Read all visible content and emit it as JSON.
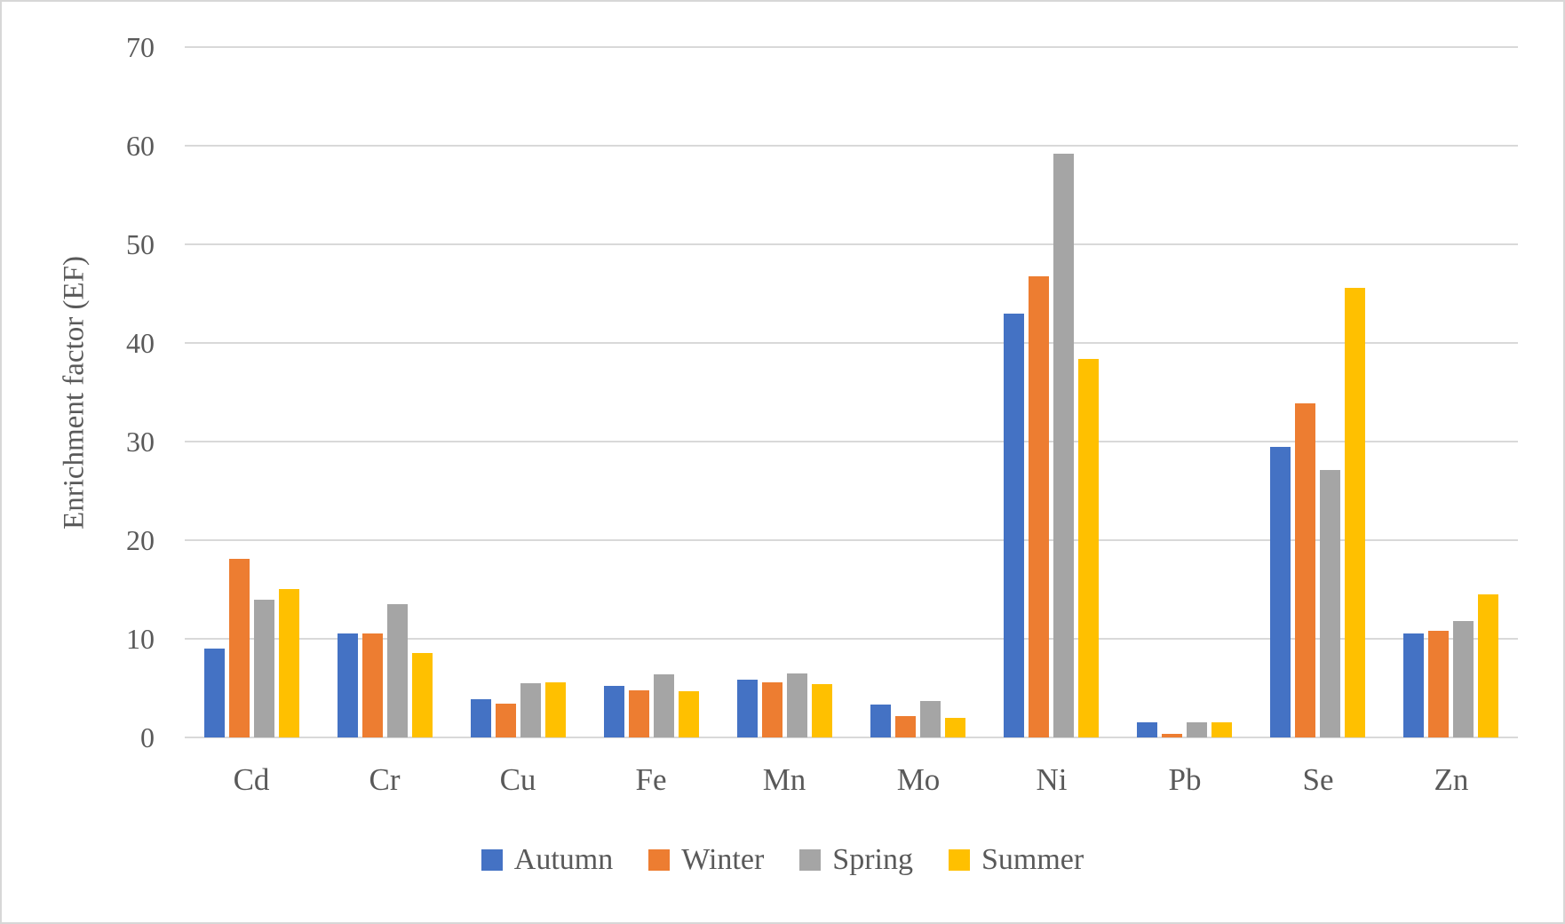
{
  "chart_data": {
    "type": "bar",
    "title": "",
    "xlabel": "",
    "ylabel": "Enrichment factor (EF)",
    "ylim": [
      0,
      70
    ],
    "yticks": [
      0,
      10,
      20,
      30,
      40,
      50,
      60,
      70
    ],
    "grid": true,
    "legend_position": "bottom",
    "categories": [
      "Cd",
      "Cr",
      "Cu",
      "Fe",
      "Mn",
      "Mo",
      "Ni",
      "Pb",
      "Se",
      "Zn"
    ],
    "series": [
      {
        "name": "Autumn",
        "color": "#4472C4",
        "values": [
          9.0,
          10.5,
          3.9,
          5.2,
          5.9,
          3.3,
          43.0,
          1.5,
          29.5,
          10.5
        ]
      },
      {
        "name": "Winter",
        "color": "#ED7D31",
        "values": [
          18.1,
          10.5,
          3.4,
          4.8,
          5.6,
          2.2,
          46.8,
          0.4,
          33.9,
          10.8
        ]
      },
      {
        "name": "Spring",
        "color": "#A5A5A5",
        "values": [
          14.0,
          13.5,
          5.5,
          6.4,
          6.5,
          3.7,
          59.2,
          1.5,
          27.1,
          11.8
        ]
      },
      {
        "name": "Summer",
        "color": "#FFC000",
        "values": [
          15.0,
          8.6,
          5.6,
          4.7,
          5.4,
          2.0,
          38.4,
          1.5,
          45.6,
          14.5
        ]
      }
    ]
  },
  "styles": {
    "text_color": "#595959",
    "grid_color": "#D9D9D9",
    "border_color": "#D7D7D7",
    "background": "#FFFFFF"
  }
}
